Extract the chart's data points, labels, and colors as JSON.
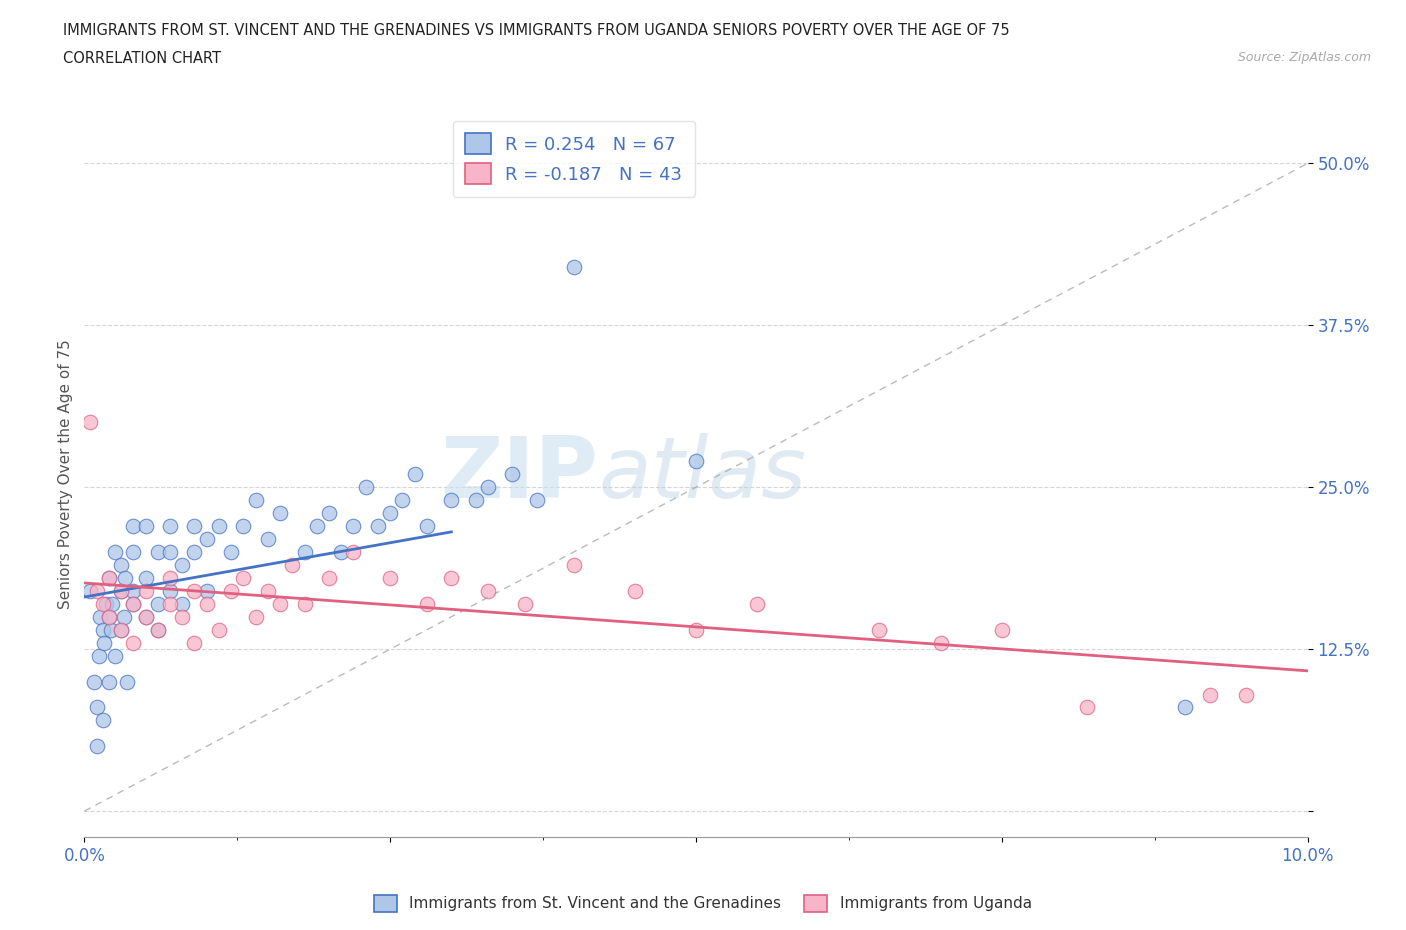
{
  "title_line1": "IMMIGRANTS FROM ST. VINCENT AND THE GRENADINES VS IMMIGRANTS FROM UGANDA SENIORS POVERTY OVER THE AGE OF 75",
  "title_line2": "CORRELATION CHART",
  "source": "Source: ZipAtlas.com",
  "ylabel": "Seniors Poverty Over the Age of 75",
  "xlim": [
    0.0,
    0.1
  ],
  "ylim": [
    -0.02,
    0.54
  ],
  "blue_fill_color": "#aec6e8",
  "blue_edge_color": "#4472c4",
  "pink_fill_color": "#f8b4c8",
  "pink_edge_color": "#e06080",
  "trend_blue_color": "#4472c4",
  "trend_pink_color": "#e06080",
  "dash_line_color": "#aaaaaa",
  "r_blue": 0.254,
  "n_blue": 67,
  "r_pink": -0.187,
  "n_pink": 43,
  "legend_label_blue": "Immigrants from St. Vincent and the Grenadines",
  "legend_label_pink": "Immigrants from Uganda",
  "watermark_zip": "ZIP",
  "watermark_atlas": "atlas",
  "grid_color": "#cccccc",
  "background_color": "#ffffff",
  "tick_color": "#4472c4",
  "blue_scatter_x": [
    0.0005,
    0.0008,
    0.001,
    0.001,
    0.0012,
    0.0013,
    0.0015,
    0.0015,
    0.0016,
    0.0018,
    0.002,
    0.002,
    0.002,
    0.0022,
    0.0023,
    0.0025,
    0.0025,
    0.003,
    0.003,
    0.003,
    0.0032,
    0.0033,
    0.0035,
    0.004,
    0.004,
    0.004,
    0.004,
    0.005,
    0.005,
    0.005,
    0.006,
    0.006,
    0.006,
    0.007,
    0.007,
    0.007,
    0.008,
    0.008,
    0.009,
    0.009,
    0.01,
    0.01,
    0.011,
    0.012,
    0.013,
    0.014,
    0.015,
    0.016,
    0.018,
    0.019,
    0.02,
    0.021,
    0.022,
    0.023,
    0.024,
    0.025,
    0.026,
    0.027,
    0.028,
    0.03,
    0.032,
    0.033,
    0.035,
    0.037,
    0.04,
    0.05,
    0.09
  ],
  "blue_scatter_y": [
    0.17,
    0.1,
    0.05,
    0.08,
    0.12,
    0.15,
    0.07,
    0.14,
    0.13,
    0.16,
    0.1,
    0.15,
    0.18,
    0.14,
    0.16,
    0.12,
    0.2,
    0.14,
    0.17,
    0.19,
    0.15,
    0.18,
    0.1,
    0.17,
    0.2,
    0.22,
    0.16,
    0.15,
    0.18,
    0.22,
    0.16,
    0.2,
    0.14,
    0.17,
    0.2,
    0.22,
    0.19,
    0.16,
    0.2,
    0.22,
    0.21,
    0.17,
    0.22,
    0.2,
    0.22,
    0.24,
    0.21,
    0.23,
    0.2,
    0.22,
    0.23,
    0.2,
    0.22,
    0.25,
    0.22,
    0.23,
    0.24,
    0.26,
    0.22,
    0.24,
    0.24,
    0.25,
    0.26,
    0.24,
    0.42,
    0.27,
    0.08
  ],
  "pink_scatter_x": [
    0.0005,
    0.001,
    0.0015,
    0.002,
    0.002,
    0.003,
    0.003,
    0.004,
    0.004,
    0.005,
    0.005,
    0.006,
    0.007,
    0.007,
    0.008,
    0.009,
    0.009,
    0.01,
    0.011,
    0.012,
    0.013,
    0.014,
    0.015,
    0.016,
    0.017,
    0.018,
    0.02,
    0.022,
    0.025,
    0.028,
    0.03,
    0.033,
    0.036,
    0.04,
    0.045,
    0.05,
    0.055,
    0.065,
    0.07,
    0.075,
    0.082,
    0.092,
    0.095
  ],
  "pink_scatter_y": [
    0.3,
    0.17,
    0.16,
    0.15,
    0.18,
    0.14,
    0.17,
    0.16,
    0.13,
    0.15,
    0.17,
    0.14,
    0.16,
    0.18,
    0.15,
    0.13,
    0.17,
    0.16,
    0.14,
    0.17,
    0.18,
    0.15,
    0.17,
    0.16,
    0.19,
    0.16,
    0.18,
    0.2,
    0.18,
    0.16,
    0.18,
    0.17,
    0.16,
    0.19,
    0.17,
    0.14,
    0.16,
    0.14,
    0.13,
    0.14,
    0.08,
    0.09,
    0.09
  ],
  "blue_trend_x0": 0.0,
  "blue_trend_x1": 0.03,
  "pink_trend_x0": 0.0,
  "pink_trend_x1": 0.1
}
